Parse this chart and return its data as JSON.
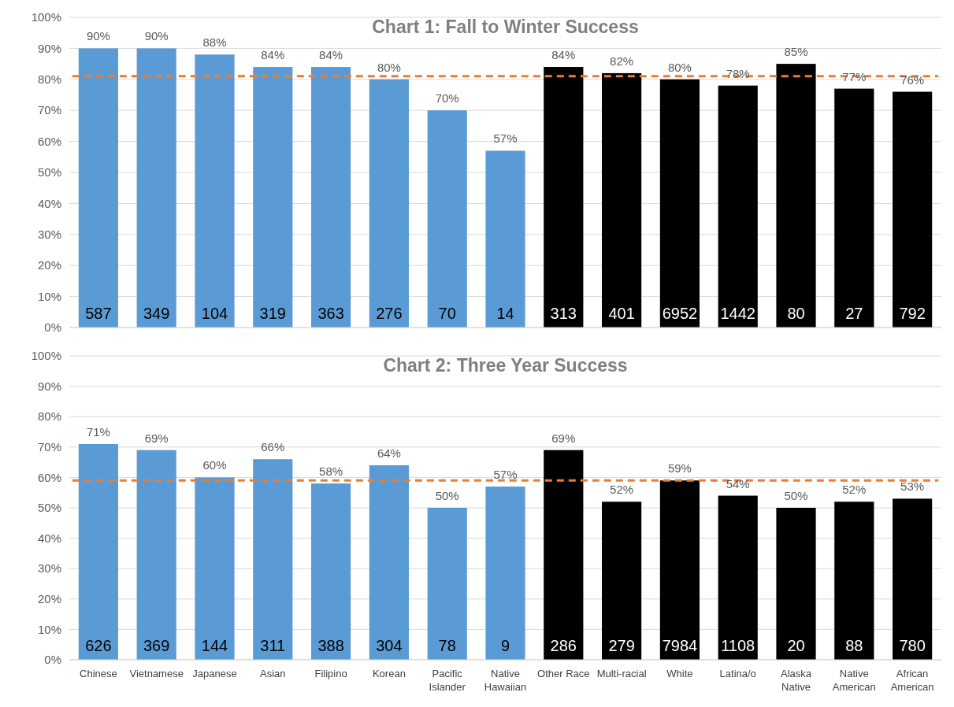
{
  "chart_data": [
    {
      "type": "bar",
      "title": "Chart 1: Fall to Winter Success",
      "categories": [
        null,
        null,
        null,
        null,
        null,
        null,
        null,
        null,
        null,
        null,
        null,
        null,
        null,
        null,
        null
      ],
      "values": [
        90,
        90,
        88,
        84,
        84,
        80,
        70,
        57,
        84,
        82,
        80,
        78,
        85,
        77,
        76
      ],
      "colors": [
        "#5b9bd5",
        "#5b9bd5",
        "#5b9bd5",
        "#5b9bd5",
        "#5b9bd5",
        "#5b9bd5",
        "#5b9bd5",
        "#5b9bd5",
        "#000000",
        "#000000",
        "#000000",
        "#000000",
        "#000000",
        "#000000",
        "#000000"
      ],
      "value_labels": [
        "90%",
        "90%",
        "88%",
        "84%",
        "84%",
        "80%",
        "70%",
        "57%",
        "84%",
        "82%",
        "80%",
        "78%",
        "85%",
        "77%",
        "76%"
      ],
      "ylim": [
        0,
        100
      ],
      "yticks": [
        {
          "value": 0,
          "label": "0%"
        },
        {
          "value": 10,
          "label": "10%"
        },
        {
          "value": 20,
          "label": "20%"
        },
        {
          "value": 30,
          "label": "30%"
        },
        {
          "value": 40,
          "label": "40%"
        },
        {
          "value": 50,
          "label": "50%"
        },
        {
          "value": 60,
          "label": "60%"
        },
        {
          "value": 70,
          "label": "70%"
        },
        {
          "value": 80,
          "label": "80%"
        },
        {
          "value": 90,
          "label": "90%"
        },
        {
          "value": 100,
          "label": "100%"
        }
      ],
      "grid": "y",
      "tick_labels": "y",
      "ref_lines": [
        {
          "axis": "y",
          "value": 81,
          "color": "#ed7d31",
          "line_style": "dashed"
        }
      ],
      "annotations": [
        "587",
        "349",
        "104",
        "319",
        "363",
        "276",
        "70",
        "14",
        "313",
        "401",
        "6952",
        "1442",
        "80",
        "27",
        "792"
      ]
    },
    {
      "type": "bar",
      "title": "Chart 2: Three Year Success",
      "categories": [
        "Chinese",
        "Vietnamese",
        "Japanese",
        "Asian",
        "Filipino",
        "Korean",
        "Pacific Islander",
        "Native Hawaiian",
        "Other Race",
        "Multi-racial",
        "White",
        "Latina/o",
        "Alaska Native",
        "Native American",
        "African American"
      ],
      "values": [
        71,
        69,
        60,
        66,
        58,
        64,
        50,
        57,
        69,
        52,
        59,
        54,
        50,
        52,
        53
      ],
      "colors": [
        "#5b9bd5",
        "#5b9bd5",
        "#5b9bd5",
        "#5b9bd5",
        "#5b9bd5",
        "#5b9bd5",
        "#5b9bd5",
        "#5b9bd5",
        "#000000",
        "#000000",
        "#000000",
        "#000000",
        "#000000",
        "#000000",
        "#000000"
      ],
      "value_labels": [
        "71%",
        "69%",
        "60%",
        "66%",
        "58%",
        "64%",
        "50%",
        "57%",
        "69%",
        "52%",
        "59%",
        "54%",
        "50%",
        "52%",
        "53%"
      ],
      "ylim": [
        0,
        100
      ],
      "yticks": [
        {
          "value": 0,
          "label": "0%"
        },
        {
          "value": 10,
          "label": "10%"
        },
        {
          "value": 20,
          "label": "20%"
        },
        {
          "value": 30,
          "label": "30%"
        },
        {
          "value": 40,
          "label": "40%"
        },
        {
          "value": 50,
          "label": "50%"
        },
        {
          "value": 60,
          "label": "60%"
        },
        {
          "value": 70,
          "label": "70%"
        },
        {
          "value": 80,
          "label": "80%"
        },
        {
          "value": 90,
          "label": "90%"
        },
        {
          "value": 100,
          "label": "100%"
        }
      ],
      "grid": "y",
      "ref_lines": [
        {
          "axis": "y",
          "value": 59,
          "color": "#ed7d31",
          "line_style": "dashed"
        }
      ],
      "annotations": [
        "626",
        "369",
        "144",
        "311",
        "388",
        "304",
        "78",
        "9",
        "286",
        "279",
        "7984",
        "1108",
        "20",
        "88",
        "780"
      ]
    }
  ]
}
